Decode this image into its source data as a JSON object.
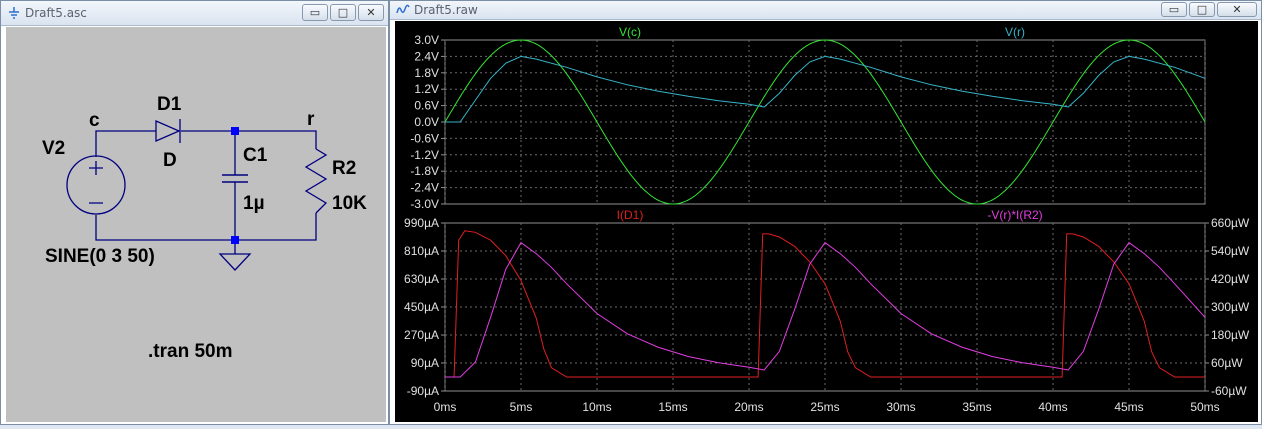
{
  "schematic_window": {
    "title": "Draft5.asc",
    "controls": {
      "minimize": "▭",
      "maximize": "□",
      "close": "✕"
    },
    "labels": {
      "node_c": "c",
      "node_r": "r",
      "diode_name": "D1",
      "diode_model": "D",
      "cap_name": "C1",
      "cap_value": "1µ",
      "res_name": "R2",
      "res_value": "10K",
      "source_name": "V2",
      "source_value": "SINE(0 3 50)",
      "directive": ".tran 50m"
    }
  },
  "plot_window": {
    "title": "Draft5.raw",
    "controls": {
      "minimize": "▭",
      "maximize": "□",
      "close": "✕"
    }
  },
  "chart_data": [
    {
      "type": "line",
      "xlim": [
        0,
        50
      ],
      "ylim": [
        -3.0,
        3.0
      ],
      "y_ticks": [
        "3.0V",
        "2.4V",
        "1.8V",
        "1.2V",
        "0.6V",
        "0.0V",
        "-0.6V",
        "-1.2V",
        "-1.8V",
        "-2.4V",
        "-3.0V"
      ],
      "series": [
        {
          "name": "V(c)",
          "color": "#33e633",
          "x": [
            0,
            2.5,
            5,
            7.5,
            10,
            12.5,
            15,
            17.5,
            20,
            22.5,
            25,
            27.5,
            30,
            32.5,
            35,
            37.5,
            40,
            42.5,
            45,
            47.5,
            50
          ],
          "y": [
            0,
            2.12,
            3.0,
            2.12,
            0,
            -2.12,
            -3.0,
            -2.12,
            0,
            2.12,
            3.0,
            2.12,
            0,
            -2.12,
            -3.0,
            -2.12,
            0,
            2.12,
            3.0,
            2.12,
            0
          ]
        },
        {
          "name": "V(r)",
          "color": "#36b4c8",
          "x": [
            0,
            1,
            2,
            3,
            4,
            5,
            6,
            8,
            10,
            12,
            14,
            16,
            18,
            20,
            21,
            22,
            23,
            24,
            25,
            26,
            28,
            30,
            32,
            34,
            36,
            38,
            40,
            41,
            42,
            43,
            44,
            45,
            46,
            48,
            50
          ],
          "y": [
            0,
            0,
            0.8,
            1.6,
            2.15,
            2.4,
            2.3,
            2.0,
            1.65,
            1.36,
            1.13,
            0.94,
            0.78,
            0.65,
            0.55,
            1.05,
            1.7,
            2.2,
            2.4,
            2.3,
            2.0,
            1.65,
            1.36,
            1.13,
            0.94,
            0.78,
            0.65,
            0.55,
            1.05,
            1.7,
            2.2,
            2.4,
            2.3,
            2.0,
            1.6
          ]
        }
      ]
    },
    {
      "type": "line",
      "xlim": [
        0,
        50
      ],
      "ylim": [
        -90,
        990
      ],
      "y2lim": [
        -60,
        660
      ],
      "x_ticks": [
        "0ms",
        "5ms",
        "10ms",
        "15ms",
        "20ms",
        "25ms",
        "30ms",
        "35ms",
        "40ms",
        "45ms",
        "50ms"
      ],
      "y_ticks": [
        "990µA",
        "810µA",
        "630µA",
        "450µA",
        "270µA",
        "90µA",
        "-90µA"
      ],
      "y2_ticks": [
        "660µW",
        "540µW",
        "420µW",
        "300µW",
        "180µW",
        "60µW",
        "-60µW"
      ],
      "series": [
        {
          "name": "I(D1)",
          "color": "#e01f1f",
          "axis": "left",
          "x": [
            0,
            0.6,
            0.9,
            1.3,
            2,
            3,
            4,
            5,
            6,
            6.5,
            7,
            8,
            10,
            12,
            14,
            16,
            18,
            20,
            20.6,
            20.9,
            21.3,
            22,
            23,
            24,
            25,
            26,
            26.5,
            27,
            28,
            30,
            32,
            34,
            36,
            38,
            40,
            40.6,
            40.9,
            41.3,
            42,
            43,
            44,
            45,
            46,
            46.5,
            47,
            48,
            50
          ],
          "y": [
            0,
            0,
            880,
            940,
            930,
            880,
            780,
            620,
            380,
            180,
            60,
            0,
            0,
            0,
            0,
            0,
            0,
            0,
            0,
            920,
            920,
            900,
            840,
            740,
            600,
            360,
            160,
            60,
            0,
            0,
            0,
            0,
            0,
            0,
            0,
            0,
            920,
            920,
            900,
            840,
            740,
            600,
            360,
            160,
            60,
            0,
            0
          ]
        },
        {
          "name": "-V(r)*I(R2)",
          "color": "#e23ee2",
          "axis": "right",
          "x": [
            0,
            1,
            2,
            3,
            4,
            5,
            6,
            7,
            8,
            10,
            12,
            14,
            16,
            18,
            20,
            21,
            22,
            23,
            24,
            25,
            26,
            27,
            28,
            30,
            32,
            34,
            36,
            38,
            40,
            41,
            42,
            43,
            44,
            45,
            46,
            47,
            48,
            50
          ],
          "y": [
            0,
            0,
            64,
            256,
            462,
            576,
            529,
            470,
            400,
            272,
            185,
            128,
            88,
            61,
            42,
            30,
            110,
            289,
            484,
            576,
            529,
            470,
            400,
            272,
            185,
            128,
            88,
            61,
            42,
            30,
            110,
            289,
            484,
            576,
            529,
            470,
            400,
            256
          ]
        }
      ]
    }
  ]
}
